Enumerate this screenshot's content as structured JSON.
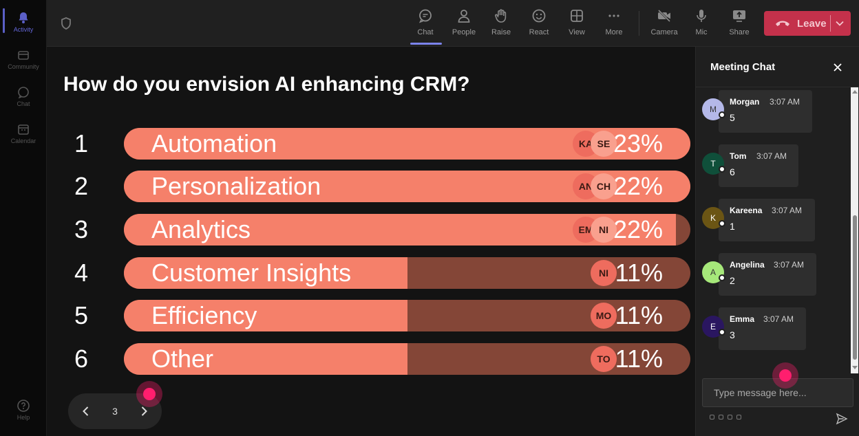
{
  "rail": {
    "items": [
      {
        "label": "Activity"
      },
      {
        "label": "Community"
      },
      {
        "label": "Chat"
      },
      {
        "label": "Calendar"
      },
      {
        "label": "Help"
      }
    ]
  },
  "toolbar": {
    "buttons": [
      {
        "label": "Chat",
        "icon": "chat-icon"
      },
      {
        "label": "People",
        "icon": "people-icon"
      },
      {
        "label": "Raise",
        "icon": "raise-hand-icon"
      },
      {
        "label": "React",
        "icon": "react-icon"
      },
      {
        "label": "View",
        "icon": "view-grid-icon"
      },
      {
        "label": "More",
        "icon": "more-icon"
      },
      {
        "label": "Camera",
        "icon": "camera-off-icon"
      },
      {
        "label": "Mic",
        "icon": "mic-icon"
      },
      {
        "label": "Share",
        "icon": "share-icon"
      }
    ],
    "leave_label": "Leave"
  },
  "poll": {
    "question": "How do you envision AI enhancing CRM?",
    "options": [
      {
        "num": "1",
        "label": "Automation",
        "pct": "23%",
        "fill": 1.0,
        "avatars": [
          "KA",
          "SE"
        ]
      },
      {
        "num": "2",
        "label": "Personalization",
        "pct": "22%",
        "fill": 1.0,
        "avatars": [
          "AN",
          "CH"
        ]
      },
      {
        "num": "3",
        "label": "Analytics",
        "pct": "22%",
        "fill": 0.975,
        "avatars": [
          "EM",
          "NI"
        ]
      },
      {
        "num": "4",
        "label": "Customer Insights",
        "pct": "11%",
        "fill": 0.5,
        "avatars": [
          "NI"
        ]
      },
      {
        "num": "5",
        "label": "Efficiency",
        "pct": "11%",
        "fill": 0.5,
        "avatars": [
          "MO"
        ]
      },
      {
        "num": "6",
        "label": "Other",
        "pct": "11%",
        "fill": 0.5,
        "avatars": [
          "TO"
        ]
      }
    ]
  },
  "pager": {
    "page": "3"
  },
  "chat": {
    "title": "Meeting Chat",
    "messages": [
      {
        "initial": "M",
        "name": "Morgan",
        "time": "3:07 AM",
        "text": "5",
        "avatar_color": "#b4b8e8",
        "initial_color": "#333"
      },
      {
        "initial": "T",
        "name": "Tom",
        "time": "3:07 AM",
        "text": "6",
        "avatar_color": "#0f4f3a",
        "initial_color": "#fff"
      },
      {
        "initial": "K",
        "name": "Kareena",
        "time": "3:07 AM",
        "text": "1",
        "avatar_color": "#6b5514",
        "initial_color": "#fff"
      },
      {
        "initial": "A",
        "name": "Angelina",
        "time": "3:07 AM",
        "text": "2",
        "avatar_color": "#a6e87a",
        "initial_color": "#333"
      },
      {
        "initial": "E",
        "name": "Emma",
        "time": "3:07 AM",
        "text": "3",
        "avatar_color": "#2a1660",
        "initial_color": "#fff"
      }
    ],
    "input_placeholder": "Type message here..."
  }
}
